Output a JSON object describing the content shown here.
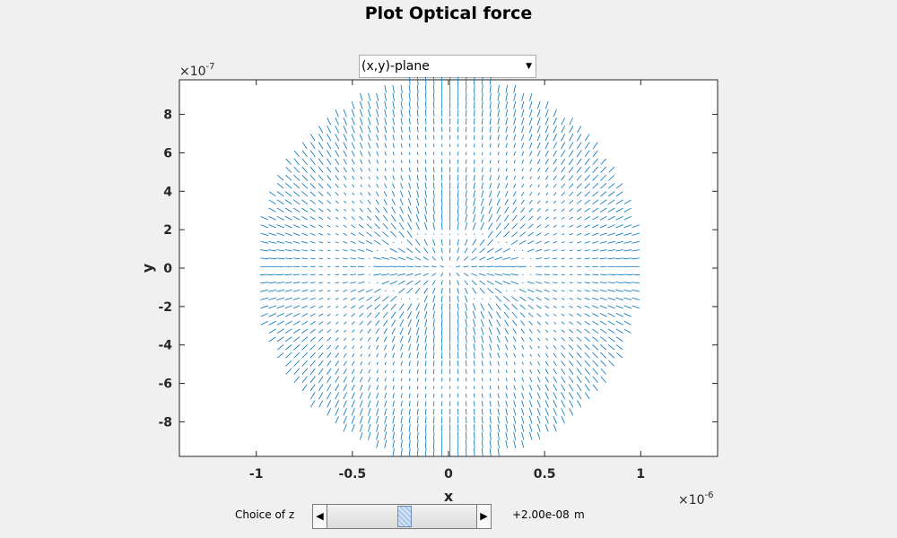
{
  "figure": {
    "title": "Plot Optical force"
  },
  "plane_select": {
    "selected": "(x,y)-plane"
  },
  "slider": {
    "label": "Choice of z",
    "value_text": "+2.00e-08",
    "unit": "m",
    "position_fraction": 0.52,
    "left_arrow_icon": "left-triangle-icon",
    "right_arrow_icon": "right-triangle-icon"
  },
  "chart_data": {
    "type": "quiver",
    "xlabel": "x",
    "ylabel": "y",
    "x_exponent_base": "×10",
    "x_exponent": "-6",
    "y_exponent_base": "×10",
    "y_exponent": "-7",
    "xlim": [
      -1.4e-06,
      1.4e-06
    ],
    "ylim": [
      -9.8e-07,
      9.8e-07
    ],
    "x_ticks": [
      -1,
      -0.5,
      0,
      0.5,
      1
    ],
    "x_tick_labels": [
      "-1",
      "-0.5",
      "0",
      "0.5",
      "1"
    ],
    "y_ticks": [
      8,
      6,
      4,
      2,
      0,
      -2,
      -4,
      -6,
      -8
    ],
    "y_tick_labels": [
      "8",
      "6",
      "4",
      "2",
      "0",
      "-2",
      "-4",
      "-6",
      "-8"
    ],
    "field_region": "circular domain of radius 1e-6 m centred at origin",
    "arrow_color": "#0072bd",
    "grid": false
  },
  "colors": {
    "background": "#f0f0f0",
    "axes_background": "#ffffff",
    "arrow": "#0072bd"
  }
}
